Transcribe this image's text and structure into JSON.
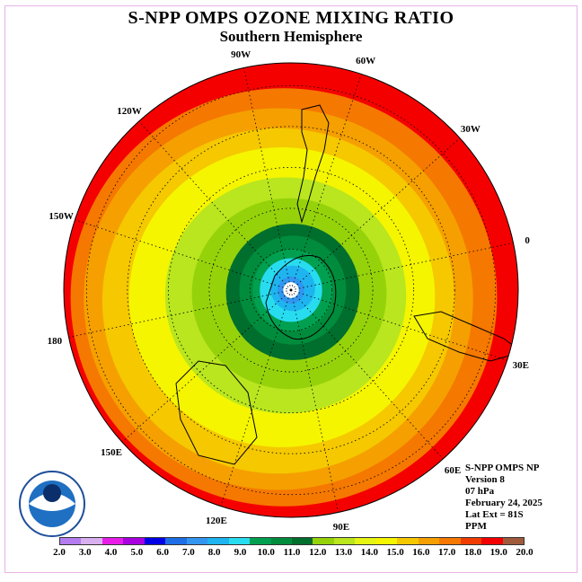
{
  "title": "S-NPP OMPS OZONE MIXING RATIO",
  "subtitle": "Southern Hemisphere",
  "longitude_labels": [
    "90W",
    "60W",
    "30W",
    "0",
    "30E",
    "60E",
    "90E",
    "120E",
    "150E",
    "180",
    "150W",
    "120W"
  ],
  "info": {
    "instrument": "S-NPP OMPS NP",
    "version": "Version 8",
    "level": "07 hPa",
    "date": "February 24, 2025",
    "lat_ext": "Lat Ext = 81S",
    "units": "PPM"
  },
  "colorbar": {
    "colors": [
      "#b57cf0",
      "#d9aff0",
      "#e81ee8",
      "#a800e0",
      "#0000e6",
      "#1e6ee6",
      "#3296f0",
      "#1eb4f0",
      "#28dcf0",
      "#00a050",
      "#008c3c",
      "#006e2d",
      "#96d20a",
      "#b9e61e",
      "#e6f514",
      "#f5f500",
      "#f5c800",
      "#f5a000",
      "#f57800",
      "#f03c00",
      "#f50000",
      "#a05a3c"
    ],
    "labels": [
      "2.0",
      "3.0",
      "4.0",
      "5.0",
      "6.0",
      "7.0",
      "8.0",
      "9.0",
      "10.0",
      "11.0",
      "12.0",
      "13.0",
      "14.0",
      "15.0",
      "16.0",
      "17.0",
      "18.0",
      "19.0",
      "20.0"
    ]
  },
  "map": {
    "fill_colors": [
      "#f50000",
      "#f57800",
      "#f5a000",
      "#f5c800",
      "#f5f500",
      "#b9e61e",
      "#96d20a",
      "#006e2d",
      "#008c3c",
      "#00a050",
      "#28dcf0",
      "#1eb4f0",
      "#3296f0",
      "#ffffff"
    ]
  }
}
